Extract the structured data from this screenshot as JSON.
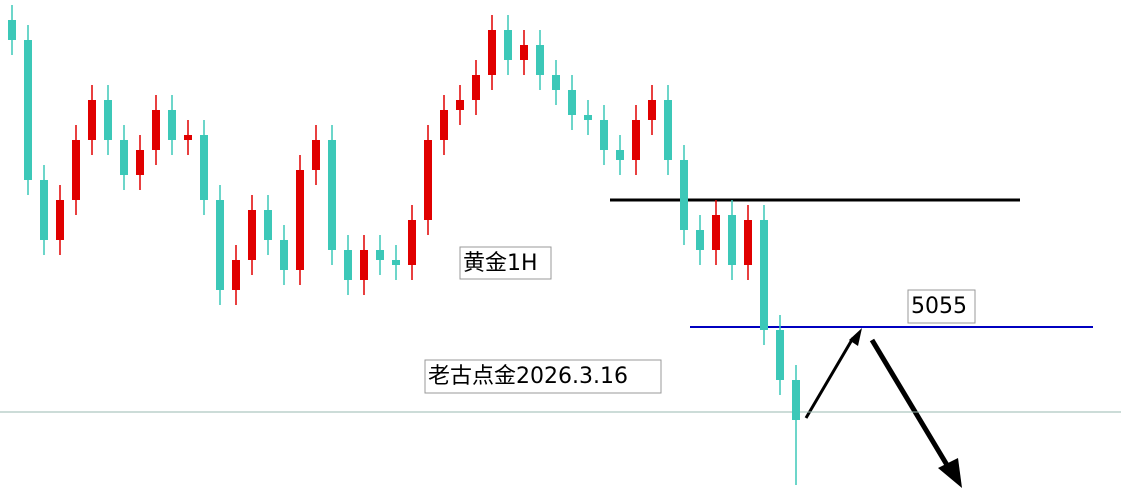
{
  "chart_data": {
    "type": "candlestick",
    "title": "黄金1H",
    "subtitle": "老古点金2026.3.16",
    "ylim": [
      4890,
      5382
    ],
    "up_color": "#e00000",
    "down_color": "#3cc8b8",
    "candles": {
      "open": [
        5362,
        5342,
        5202,
        5142,
        5182,
        5242,
        5282,
        5242,
        5207,
        5232,
        5272,
        5242,
        5247,
        5182,
        5092,
        5122,
        5172,
        5142,
        5112,
        5212,
        5242,
        5132,
        5102,
        5132,
        5122,
        5117,
        5162,
        5242,
        5272,
        5282,
        5307,
        5352,
        5322,
        5337,
        5307,
        5292,
        5267,
        5262,
        5232,
        5222,
        5262,
        5282,
        5222,
        5152,
        5132,
        5167,
        5117,
        5162,
        5052,
        5002
      ],
      "high": [
        5377,
        5357,
        5217,
        5197,
        5257,
        5297,
        5297,
        5257,
        5247,
        5287,
        5287,
        5262,
        5262,
        5197,
        5137,
        5187,
        5187,
        5157,
        5227,
        5257,
        5257,
        5147,
        5147,
        5147,
        5137,
        5177,
        5257,
        5287,
        5297,
        5322,
        5367,
        5367,
        5352,
        5352,
        5322,
        5307,
        5282,
        5277,
        5247,
        5277,
        5297,
        5297,
        5237,
        5167,
        5182,
        5182,
        5177,
        5177,
        5067,
        5017
      ],
      "low": [
        5327,
        5187,
        5127,
        5127,
        5167,
        5227,
        5227,
        5192,
        5192,
        5217,
        5227,
        5227,
        5167,
        5077,
        5077,
        5107,
        5127,
        5097,
        5097,
        5197,
        5117,
        5087,
        5087,
        5107,
        5102,
        5102,
        5147,
        5227,
        5257,
        5267,
        5292,
        5307,
        5307,
        5292,
        5277,
        5252,
        5247,
        5217,
        5207,
        5207,
        5247,
        5207,
        5137,
        5117,
        5117,
        5102,
        5102,
        5037,
        4987,
        4897
      ],
      "close": [
        5342,
        5202,
        5142,
        5182,
        5242,
        5282,
        5242,
        5207,
        5232,
        5272,
        5242,
        5247,
        5182,
        5092,
        5122,
        5172,
        5142,
        5112,
        5212,
        5242,
        5132,
        5102,
        5132,
        5122,
        5117,
        5162,
        5242,
        5272,
        5282,
        5307,
        5352,
        5322,
        5337,
        5307,
        5292,
        5267,
        5262,
        5232,
        5222,
        5262,
        5282,
        5222,
        5152,
        5132,
        5167,
        5117,
        5162,
        5052,
        5002,
        4962
      ]
    },
    "levels": [
      {
        "value": 5182,
        "color": "#000000"
      },
      {
        "value": 5055,
        "color": "#0000c0"
      },
      {
        "value": 4970,
        "color": "#9ab8b0"
      }
    ]
  }
}
